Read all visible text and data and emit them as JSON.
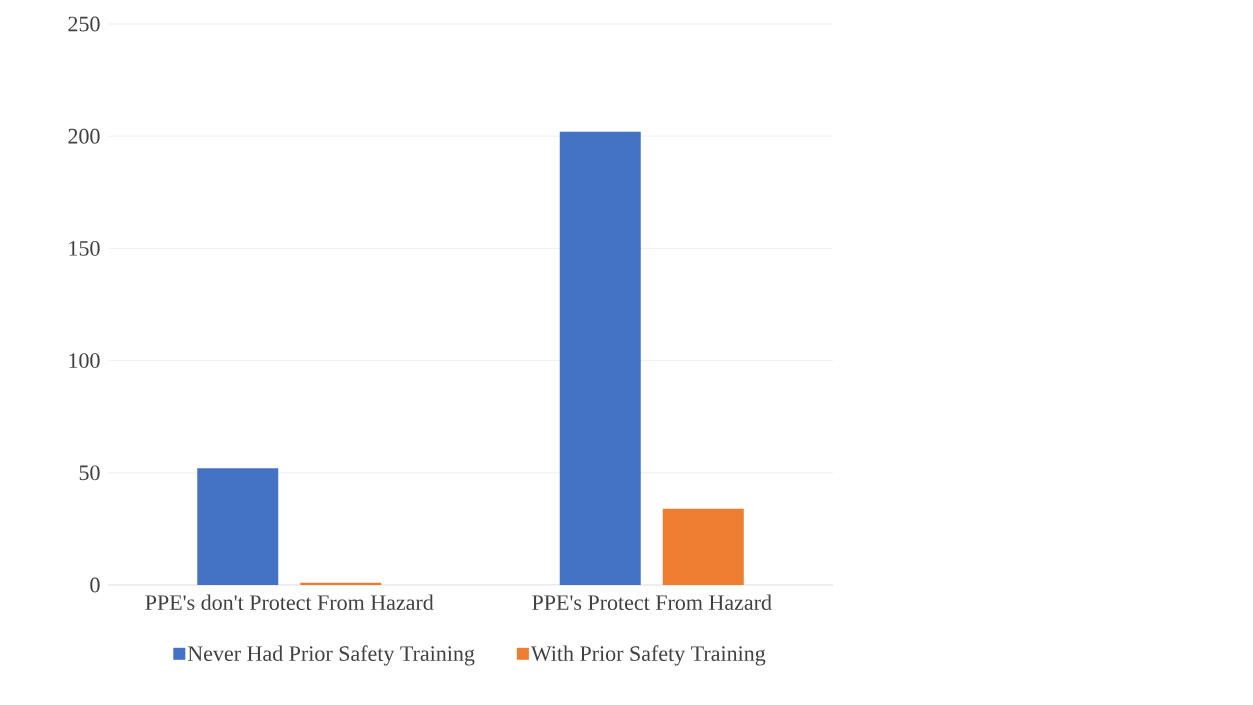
{
  "chart_data": {
    "type": "bar",
    "categories": [
      "PPE's don't Protect From Hazard",
      "PPE's Protect From Hazard"
    ],
    "series": [
      {
        "name": "Never Had Prior Safety Training",
        "color": "#4472c4",
        "values": [
          52,
          202
        ]
      },
      {
        "name": "With Prior Safety Training",
        "color": "#ed7d31",
        "values": [
          1,
          34
        ]
      }
    ],
    "ylim": [
      0,
      250
    ],
    "yticks": [
      0,
      50,
      100,
      150,
      200,
      250
    ],
    "grid": "y",
    "legend": "bottom"
  }
}
